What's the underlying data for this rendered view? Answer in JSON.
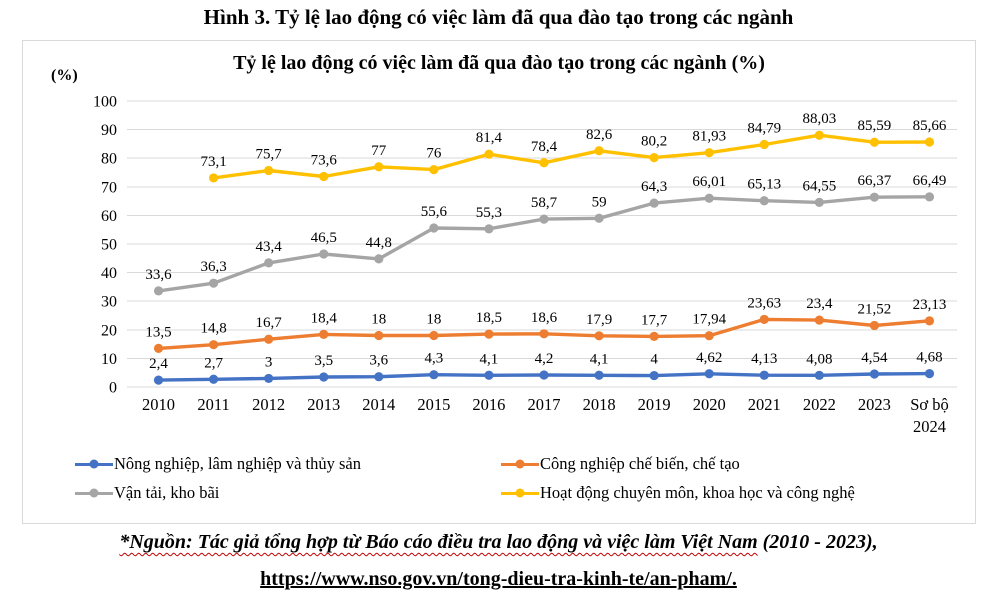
{
  "page": {
    "title": "Hình 3. Tỷ lệ lao động có việc làm đã qua đào tạo trong các ngành",
    "source_prefix": "*Nguồn: Tác giả tổng hợp từ Báo cáo điều tra lao động và việc làm Việt Nam",
    "source_suffix": " (2010 - 2023),",
    "source_url": "https://www.nso.gov.vn/tong-dieu-tra-kinh-te/an-pham/."
  },
  "chart_data": {
    "type": "line",
    "title": "Tỷ lệ lao động có việc làm đã qua đào tạo trong các ngành (%)",
    "xlabel": "",
    "ylabel": "(%)",
    "y_axis_unit_label": "(%)",
    "ylim": [
      0,
      100
    ],
    "ytick_step": 10,
    "grid": true,
    "legend_position": "bottom",
    "decimal_separator": ",",
    "categories": [
      "2010",
      "2011",
      "2012",
      "2013",
      "2014",
      "2015",
      "2016",
      "2017",
      "2018",
      "2019",
      "2020",
      "2021",
      "2022",
      "2023",
      "Sơ bộ\n2024"
    ],
    "series": [
      {
        "name": "Nông nghiệp, lâm nghiệp và thủy sản",
        "color": "#4472C4",
        "values": [
          2.4,
          2.7,
          3,
          3.5,
          3.6,
          4.3,
          4.1,
          4.2,
          4.1,
          4,
          4.62,
          4.13,
          4.08,
          4.54,
          4.68
        ],
        "labels": [
          "2,4",
          "2,7",
          "3",
          "3,5",
          "3,6",
          "4,3",
          "4,1",
          "4,2",
          "4,1",
          "4",
          "4,62",
          "4,13",
          "4,08",
          "4,54",
          "4,68"
        ]
      },
      {
        "name": "Công nghiệp chế biến, chế tạo",
        "color": "#ED7D31",
        "values": [
          13.5,
          14.8,
          16.7,
          18.4,
          18,
          18,
          18.5,
          18.6,
          17.9,
          17.7,
          17.94,
          23.63,
          23.4,
          21.52,
          23.13
        ],
        "labels": [
          "13,5",
          "14,8",
          "16,7",
          "18,4",
          "18",
          "18",
          "18,5",
          "18,6",
          "17,9",
          "17,7",
          "17,94",
          "23,63",
          "23,4",
          "21,52",
          "23,13"
        ]
      },
      {
        "name": "Vận tải, kho bãi",
        "color": "#A5A5A5",
        "values": [
          33.6,
          36.3,
          43.4,
          46.5,
          44.8,
          55.6,
          55.3,
          58.7,
          59,
          64.3,
          66.01,
          65.13,
          64.55,
          66.37,
          66.49
        ],
        "labels": [
          "33,6",
          "36,3",
          "43,4",
          "46,5",
          "44,8",
          "55,6",
          "55,3",
          "58,7",
          "59",
          "64,3",
          "66,01",
          "65,13",
          "64,55",
          "66,37",
          "66,49"
        ]
      },
      {
        "name": "Hoạt động chuyên môn, khoa học và công nghệ",
        "color": "#FFC000",
        "values": [
          null,
          73.1,
          75.7,
          73.6,
          77,
          76,
          81.4,
          78.4,
          82.6,
          80.2,
          81.93,
          84.79,
          88.03,
          85.59,
          85.66
        ],
        "labels": [
          null,
          "73,1",
          "75,7",
          "73,6",
          "77",
          "76",
          "81,4",
          "78,4",
          "82,6",
          "80,2",
          "81,93",
          "84,79",
          "88,03",
          "85,59",
          "85,66"
        ]
      }
    ],
    "grid_color": "#d9d9d9"
  }
}
